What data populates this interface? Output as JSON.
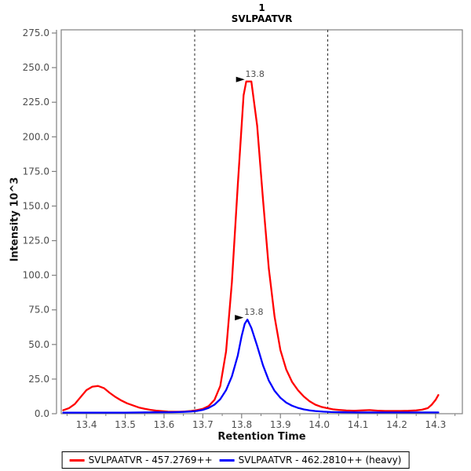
{
  "chart_data": {
    "type": "line",
    "title_lines": [
      "1",
      "SVLPAATVR"
    ],
    "xlabel": "Retention Time",
    "ylabel": "Intensity 10^3",
    "xlim": [
      13.335,
      14.369
    ],
    "ylim": [
      0,
      277.3
    ],
    "grid": false,
    "legend_position": "bottom-center",
    "x_major_ticks": [
      {
        "value": 13.4,
        "label": "13.4"
      },
      {
        "value": 13.5,
        "label": "13.5"
      },
      {
        "value": 13.6,
        "label": "13.6"
      },
      {
        "value": 13.7,
        "label": "13.7"
      },
      {
        "value": 13.8,
        "label": "13.8"
      },
      {
        "value": 13.9,
        "label": "13.9"
      },
      {
        "value": 14.0,
        "label": "14.0"
      },
      {
        "value": 14.1,
        "label": "14.1"
      },
      {
        "value": 14.2,
        "label": "14.2"
      },
      {
        "value": 14.3,
        "label": "14.3"
      }
    ],
    "x_minor_ticks": [
      13.35,
      13.45,
      13.55,
      13.65,
      13.75,
      13.85,
      13.95,
      14.05,
      14.15,
      14.25,
      14.35
    ],
    "y_major_ticks": [
      {
        "value": 0,
        "label": "0.0"
      },
      {
        "value": 25,
        "label": "25.0"
      },
      {
        "value": 50,
        "label": "50.0"
      },
      {
        "value": 75,
        "label": "75.0"
      },
      {
        "value": 100,
        "label": "100.0"
      },
      {
        "value": 125,
        "label": "125.0"
      },
      {
        "value": 150,
        "label": "150.0"
      },
      {
        "value": 175,
        "label": "175.0"
      },
      {
        "value": 200,
        "label": "200.0"
      },
      {
        "value": 225,
        "label": "225.0"
      },
      {
        "value": 250,
        "label": "250.0"
      },
      {
        "value": 275,
        "label": "275.0"
      }
    ],
    "integration_boundaries": [
      13.679,
      14.022
    ],
    "series": [
      {
        "name": "SVLPAATVR - 457.2769++",
        "color": "#ff0000",
        "points": [
          [
            13.34,
            2.5
          ],
          [
            13.355,
            4
          ],
          [
            13.37,
            7
          ],
          [
            13.385,
            12
          ],
          [
            13.4,
            17
          ],
          [
            13.415,
            19.5
          ],
          [
            13.43,
            20
          ],
          [
            13.445,
            18.5
          ],
          [
            13.46,
            15
          ],
          [
            13.475,
            12
          ],
          [
            13.49,
            9.5
          ],
          [
            13.505,
            7.5
          ],
          [
            13.52,
            6
          ],
          [
            13.535,
            4.5
          ],
          [
            13.55,
            3.5
          ],
          [
            13.565,
            2.8
          ],
          [
            13.58,
            2.2
          ],
          [
            13.595,
            1.8
          ],
          [
            13.61,
            1.5
          ],
          [
            13.625,
            1.4
          ],
          [
            13.64,
            1.4
          ],
          [
            13.655,
            1.6
          ],
          [
            13.67,
            2.0
          ],
          [
            13.685,
            2.6
          ],
          [
            13.7,
            3.5
          ],
          [
            13.715,
            5.5
          ],
          [
            13.73,
            10
          ],
          [
            13.745,
            20
          ],
          [
            13.76,
            45
          ],
          [
            13.775,
            95
          ],
          [
            13.79,
            165
          ],
          [
            13.805,
            230
          ],
          [
            13.812,
            240
          ],
          [
            13.825,
            240
          ],
          [
            13.84,
            208
          ],
          [
            13.855,
            155
          ],
          [
            13.87,
            105
          ],
          [
            13.885,
            70
          ],
          [
            13.9,
            46
          ],
          [
            13.915,
            32
          ],
          [
            13.93,
            23
          ],
          [
            13.945,
            17
          ],
          [
            13.96,
            12.5
          ],
          [
            13.975,
            9
          ],
          [
            13.99,
            6.5
          ],
          [
            14.005,
            5
          ],
          [
            14.02,
            4
          ],
          [
            14.035,
            3.2
          ],
          [
            14.05,
            2.7
          ],
          [
            14.07,
            2.3
          ],
          [
            14.09,
            2.1
          ],
          [
            14.11,
            2.4
          ],
          [
            14.13,
            2.6
          ],
          [
            14.15,
            2.2
          ],
          [
            14.17,
            2.0
          ],
          [
            14.19,
            2.0
          ],
          [
            14.21,
            2.0
          ],
          [
            14.23,
            2.1
          ],
          [
            14.25,
            2.4
          ],
          [
            14.265,
            2.9
          ],
          [
            14.28,
            4
          ],
          [
            14.29,
            6.5
          ],
          [
            14.3,
            10
          ],
          [
            14.307,
            13.5
          ]
        ]
      },
      {
        "name": "SVLPAATVR - 462.2810++ (heavy)",
        "color": "#0000ff",
        "points": [
          [
            13.34,
            0.8
          ],
          [
            13.38,
            0.8
          ],
          [
            13.42,
            0.8
          ],
          [
            13.46,
            0.8
          ],
          [
            13.5,
            0.8
          ],
          [
            13.54,
            0.9
          ],
          [
            13.58,
            1.0
          ],
          [
            13.62,
            1.1
          ],
          [
            13.65,
            1.3
          ],
          [
            13.67,
            1.6
          ],
          [
            13.685,
            2.0
          ],
          [
            13.7,
            2.8
          ],
          [
            13.715,
            4.2
          ],
          [
            13.73,
            6.5
          ],
          [
            13.745,
            10.5
          ],
          [
            13.76,
            17
          ],
          [
            13.775,
            27
          ],
          [
            13.79,
            42
          ],
          [
            13.8,
            56
          ],
          [
            13.808,
            65
          ],
          [
            13.815,
            68
          ],
          [
            13.825,
            62
          ],
          [
            13.84,
            49
          ],
          [
            13.855,
            35
          ],
          [
            13.87,
            24
          ],
          [
            13.885,
            16.5
          ],
          [
            13.9,
            11.5
          ],
          [
            13.915,
            8
          ],
          [
            13.93,
            5.8
          ],
          [
            13.945,
            4.2
          ],
          [
            13.96,
            3.1
          ],
          [
            13.975,
            2.4
          ],
          [
            13.99,
            1.9
          ],
          [
            14.01,
            1.5
          ],
          [
            14.03,
            1.2
          ],
          [
            14.06,
            1.0
          ],
          [
            14.1,
            0.9
          ],
          [
            14.15,
            0.9
          ],
          [
            14.2,
            0.9
          ],
          [
            14.25,
            0.9
          ],
          [
            14.307,
            0.9
          ]
        ]
      }
    ],
    "annotations": [
      {
        "label": "13.8",
        "x": 13.818,
        "y": 240,
        "color": "#ff0000"
      },
      {
        "label": "13.8",
        "x": 13.815,
        "y": 68,
        "color": "#0000ff"
      }
    ]
  },
  "colors": {
    "frame": "#808080",
    "tick_label": "#4d4d4d",
    "boundary": "#2b2b2b",
    "annotation_arrow": "#000000",
    "background": "#ffffff"
  }
}
